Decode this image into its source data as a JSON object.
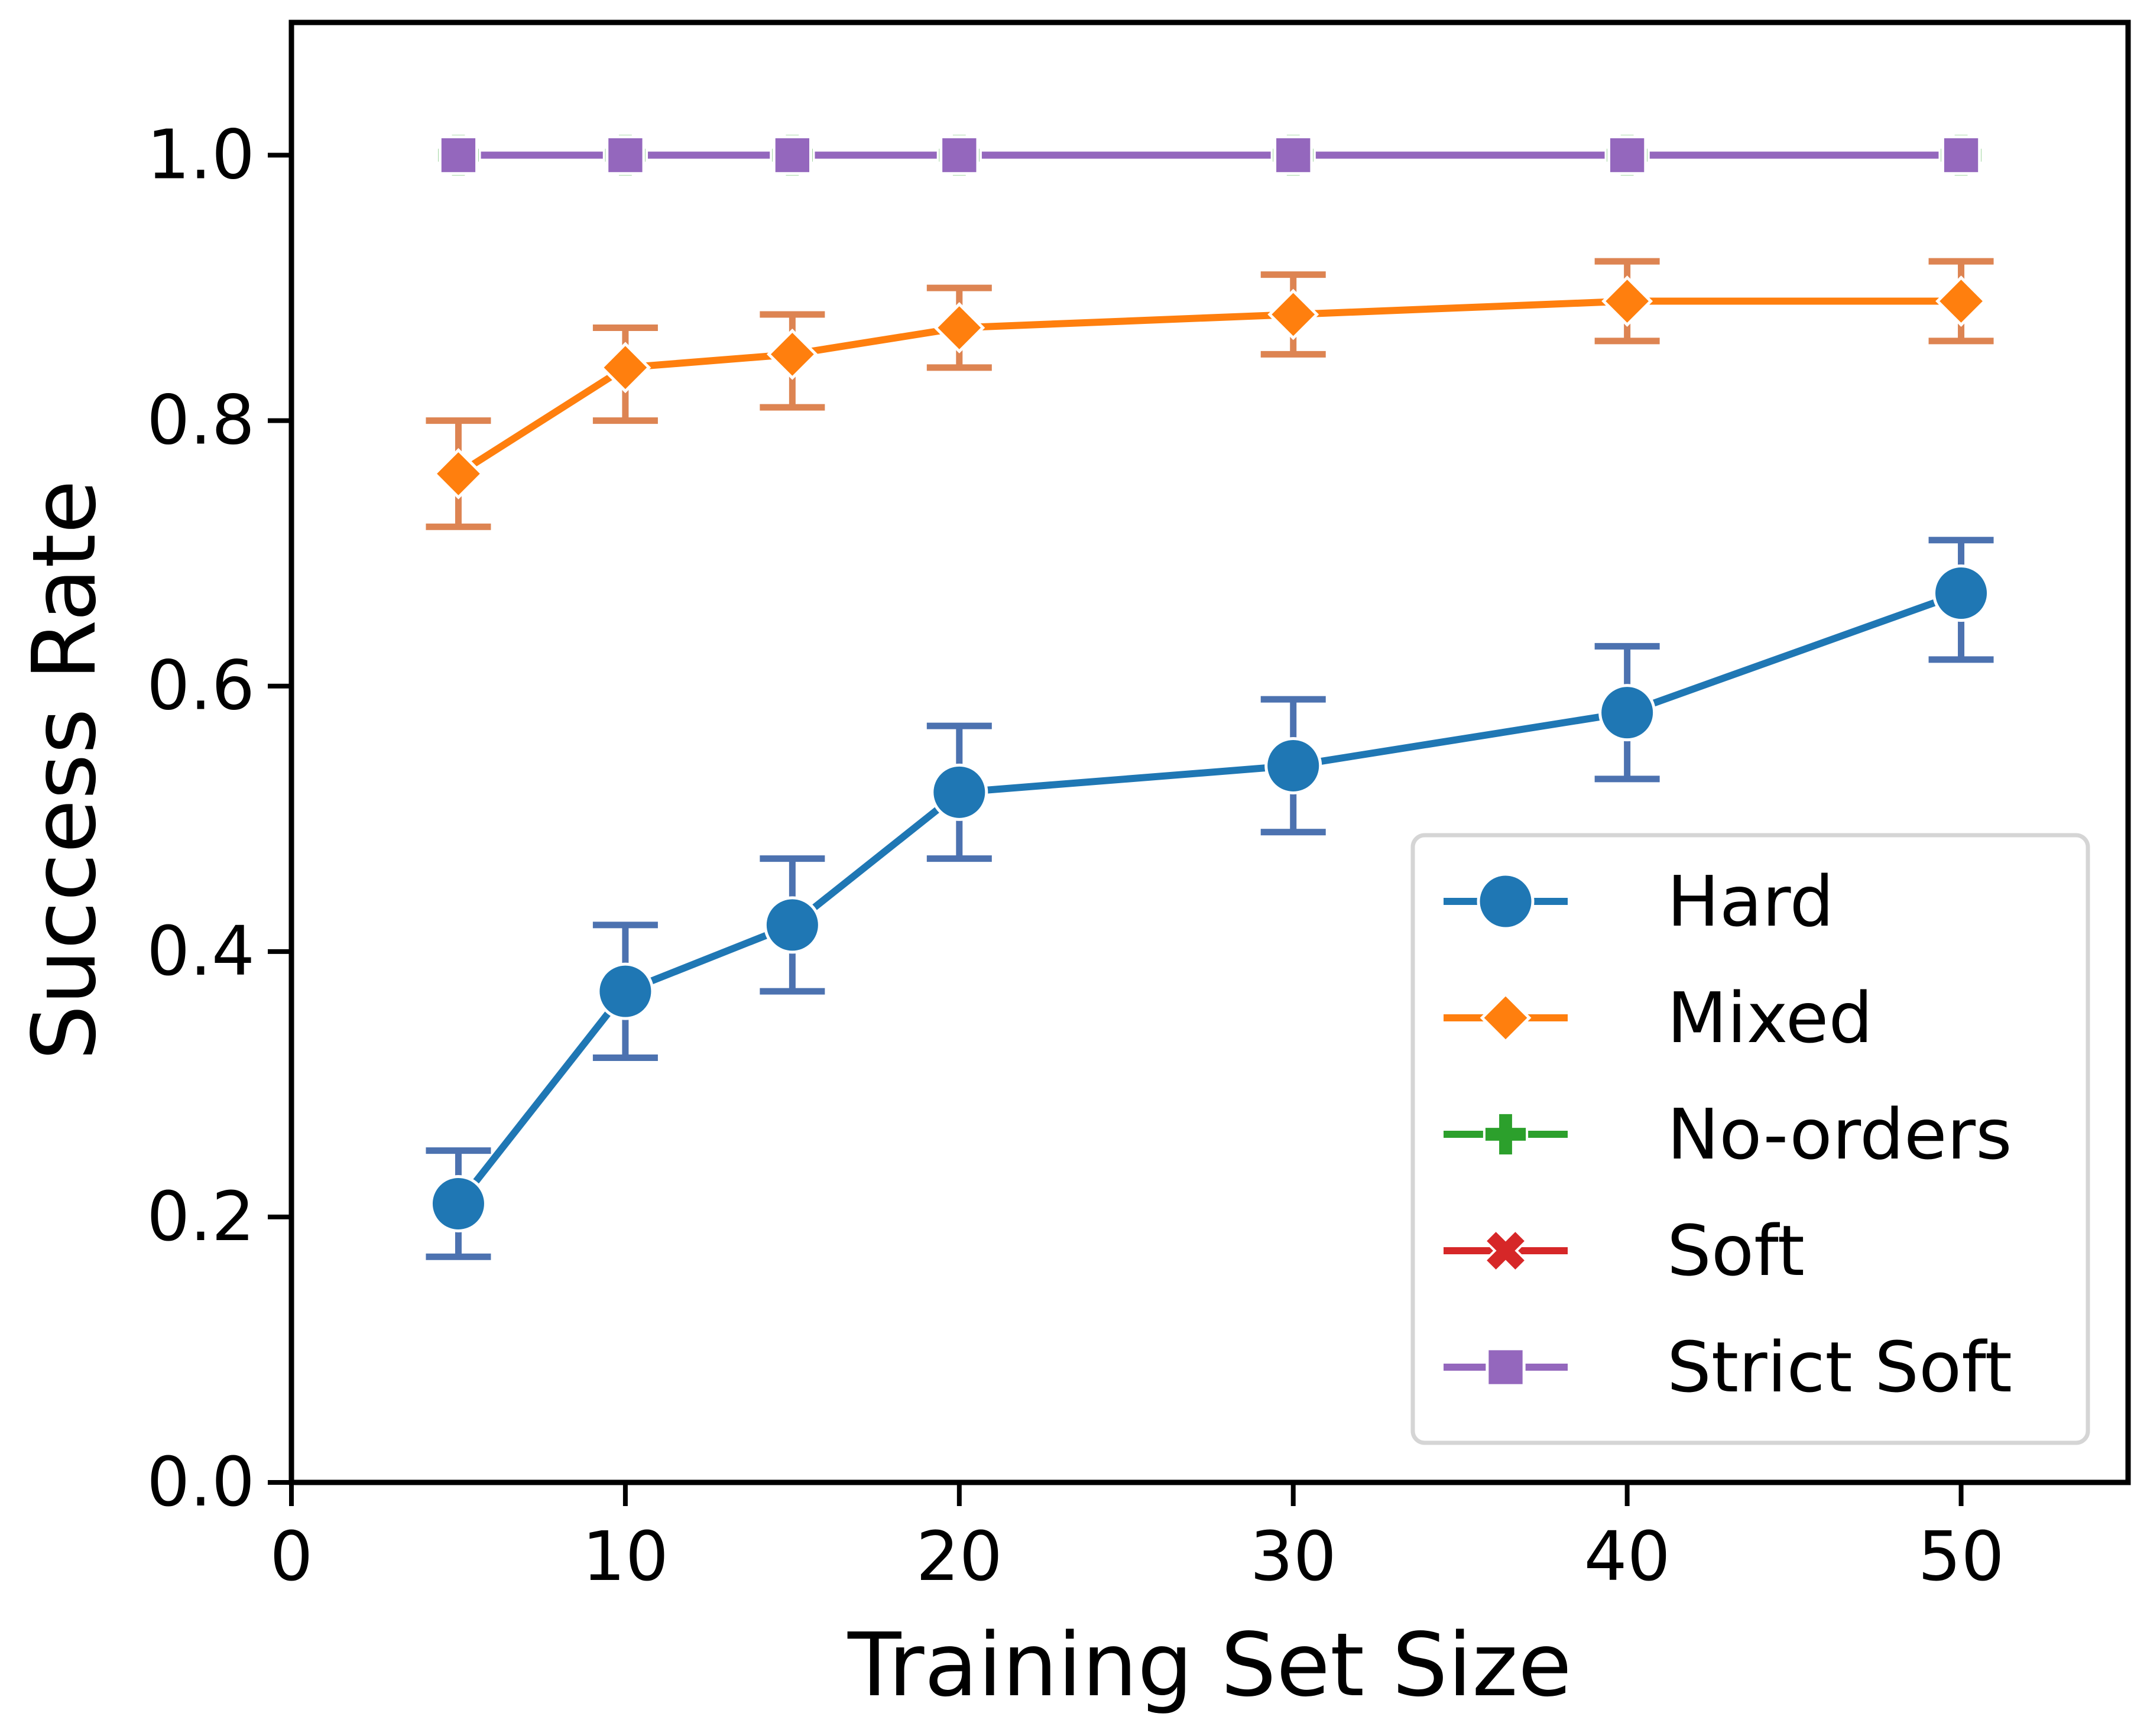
{
  "chart_data": {
    "type": "line",
    "title": "",
    "xlabel": "Training Set Size",
    "ylabel": "Success Rate",
    "xlim": [
      0,
      55
    ],
    "ylim": [
      0.0,
      1.1
    ],
    "xticks": [
      0,
      10,
      20,
      30,
      40,
      50
    ],
    "xtick_labels": [
      "0",
      "10",
      "20",
      "30",
      "40",
      "50"
    ],
    "yticks": [
      0.0,
      0.2,
      0.4,
      0.6,
      0.8,
      1.0
    ],
    "ytick_labels": [
      "0.0",
      "0.2",
      "0.4",
      "0.6",
      "0.8",
      "1.0"
    ],
    "grid": false,
    "legend_position": "lower-right",
    "x": [
      5,
      10,
      15,
      20,
      30,
      40,
      50
    ],
    "series": [
      {
        "name": "Hard",
        "marker": "circle",
        "color": "#1f77b4",
        "errorbar_color": "#4c72b0",
        "values": [
          0.21,
          0.37,
          0.42,
          0.52,
          0.54,
          0.58,
          0.67
        ],
        "err_low": [
          0.17,
          0.32,
          0.37,
          0.47,
          0.49,
          0.53,
          0.62
        ],
        "err_high": [
          0.25,
          0.42,
          0.47,
          0.57,
          0.59,
          0.63,
          0.71
        ]
      },
      {
        "name": "Mixed",
        "marker": "diamond",
        "color": "#ff7f0e",
        "errorbar_color": "#dd8452",
        "values": [
          0.76,
          0.84,
          0.85,
          0.87,
          0.88,
          0.89,
          0.89
        ],
        "err_low": [
          0.72,
          0.8,
          0.81,
          0.84,
          0.85,
          0.86,
          0.86
        ],
        "err_high": [
          0.8,
          0.87,
          0.88,
          0.9,
          0.91,
          0.92,
          0.92
        ]
      },
      {
        "name": "No-orders",
        "marker": "plus",
        "color": "#2ca02c",
        "errorbar_color": "#55a868",
        "values": [
          1.0,
          1.0,
          1.0,
          1.0,
          1.0,
          1.0,
          1.0
        ]
      },
      {
        "name": "Soft",
        "marker": "x",
        "color": "#d62728",
        "errorbar_color": "#c44e52",
        "values": [
          1.0,
          1.0,
          1.0,
          1.0,
          1.0,
          1.0,
          1.0
        ]
      },
      {
        "name": "Strict Soft",
        "marker": "square",
        "color": "#9467bd",
        "errorbar_color": "#8172b3",
        "values": [
          1.0,
          1.0,
          1.0,
          1.0,
          1.0,
          1.0,
          1.0
        ]
      }
    ]
  }
}
